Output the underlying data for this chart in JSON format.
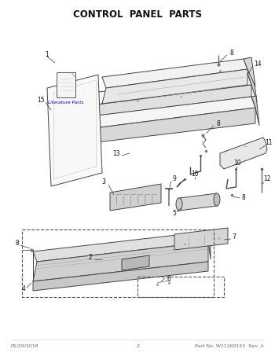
{
  "title": "CONTROL  PANEL  PARTS",
  "footer_left": "05/29/2018",
  "footer_center": "2",
  "footer_right": "Part No. W11260153  Rev. A",
  "bg_color": "#ffffff",
  "line_color": "#444444",
  "dashed_color": "#555555",
  "label_color": "#111111",
  "lit_parts_text": "Literature Parts"
}
